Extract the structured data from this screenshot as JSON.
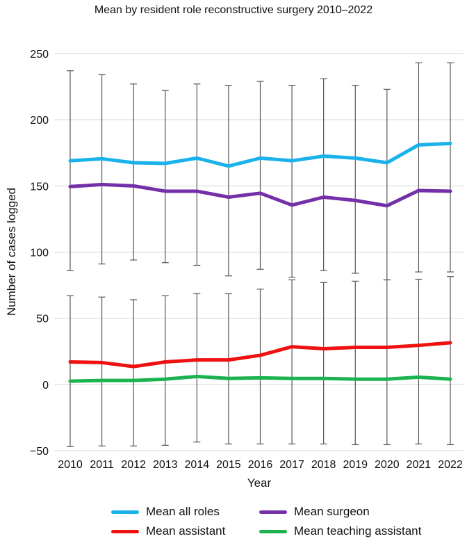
{
  "chart_data": {
    "type": "line",
    "title": "Mean by resident role reconstructive surgery 2010–2022",
    "xlabel": "Year",
    "ylabel": "Number of cases logged",
    "ylim": [
      -50,
      250
    ],
    "yticks": [
      -50,
      0,
      50,
      100,
      150,
      200,
      250
    ],
    "grid": true,
    "categories": [
      "2010",
      "2011",
      "2012",
      "2013",
      "2014",
      "2015",
      "2016",
      "2017",
      "2018",
      "2019",
      "2020",
      "2021",
      "2022"
    ],
    "series": [
      {
        "name": "Mean all roles",
        "color": "#1ab2ea",
        "values": [
          169,
          170.5,
          167.5,
          167,
          171,
          165,
          171,
          169,
          172.5,
          171,
          167.5,
          181,
          182
        ],
        "error_lower": [
          86,
          91,
          94,
          92,
          90,
          82,
          87,
          81,
          86,
          84,
          79,
          85,
          85
        ],
        "error_upper": [
          237,
          234,
          227,
          222,
          227,
          226,
          229,
          226,
          231,
          226,
          223,
          243,
          243
        ]
      },
      {
        "name": "Mean surgeon",
        "color": "#7330a8",
        "values": [
          149.5,
          151,
          150,
          146,
          146,
          141.5,
          144.5,
          135.5,
          141.5,
          139,
          135,
          146.5,
          146
        ],
        "error_lower": null,
        "error_upper": null
      },
      {
        "name": "Mean assistant",
        "color": "#ee1111",
        "values": [
          17,
          16.5,
          13.5,
          17,
          18.5,
          18.5,
          22,
          28.5,
          27,
          28,
          28,
          29.5,
          31.5
        ],
        "error_lower": [
          -47,
          -46.5,
          -46.5,
          -46,
          -43.5,
          -45,
          -45,
          -45,
          -45,
          -45.5,
          -45.5,
          -45,
          -45.5
        ],
        "error_upper": [
          67,
          66,
          64,
          67,
          68.5,
          68.5,
          72,
          79,
          77,
          78,
          79,
          79.5,
          81.5
        ]
      },
      {
        "name": "Mean teaching assistant",
        "color": "#1ab34f",
        "values": [
          2.5,
          3,
          3,
          4,
          6,
          4.5,
          5,
          4.5,
          4.5,
          4,
          4,
          5.5,
          4
        ],
        "error_lower": null,
        "error_upper": null
      }
    ]
  },
  "legend": [
    {
      "label": "Mean all roles",
      "color": "#1ab2ea"
    },
    {
      "label": "Mean surgeon",
      "color": "#7330a8"
    },
    {
      "label": "Mean assistant",
      "color": "#ee1111"
    },
    {
      "label": "Mean teaching assistant",
      "color": "#1ab34f"
    }
  ]
}
